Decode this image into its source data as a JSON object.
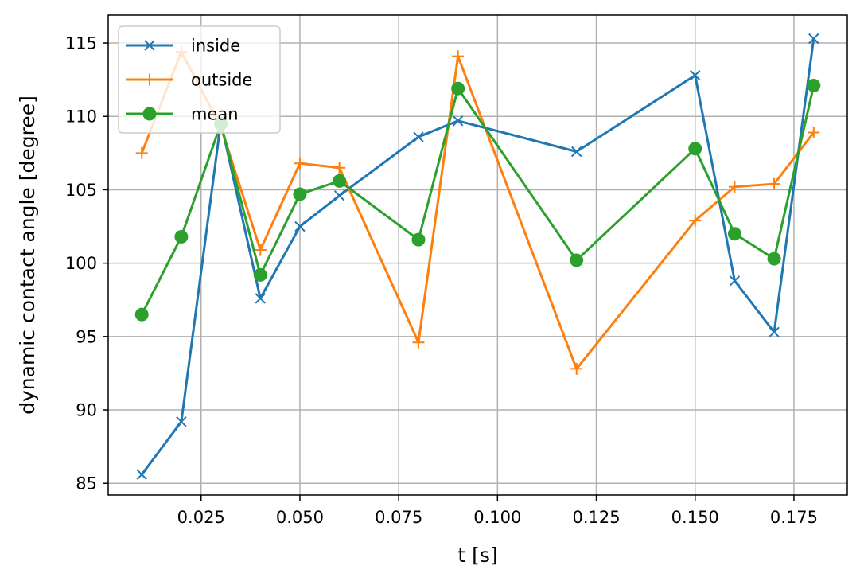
{
  "chart_data": {
    "type": "line",
    "title": "",
    "xlabel": "t [s]",
    "ylabel": "dynamic contact angle [degree]",
    "xlim": [
      0.0015,
      0.1885
    ],
    "ylim": [
      84.2,
      116.9
    ],
    "grid": true,
    "legend": "upper left",
    "x_ticks": [
      {
        "value": 0.025,
        "label": "0.025"
      },
      {
        "value": 0.05,
        "label": "0.050"
      },
      {
        "value": 0.075,
        "label": "0.075"
      },
      {
        "value": 0.1,
        "label": "0.100"
      },
      {
        "value": 0.125,
        "label": "0.125"
      },
      {
        "value": 0.15,
        "label": "0.150"
      },
      {
        "value": 0.175,
        "label": "0.175"
      }
    ],
    "y_ticks": [
      {
        "value": 85,
        "label": "85"
      },
      {
        "value": 90,
        "label": "90"
      },
      {
        "value": 95,
        "label": "95"
      },
      {
        "value": 100,
        "label": "100"
      },
      {
        "value": 105,
        "label": "105"
      },
      {
        "value": 110,
        "label": "110"
      },
      {
        "value": 115,
        "label": "115"
      }
    ],
    "x": [
      0.01,
      0.02,
      0.03,
      0.04,
      0.05,
      0.06,
      0.08,
      0.09,
      0.12,
      0.15,
      0.16,
      0.17,
      0.18
    ],
    "series": [
      {
        "name": "inside",
        "color": "#1f77b4",
        "marker": "x",
        "values": [
          85.6,
          89.2,
          109.6,
          97.6,
          102.5,
          104.6,
          108.6,
          109.7,
          107.6,
          112.8,
          98.8,
          95.3,
          115.3
        ]
      },
      {
        "name": "outside",
        "color": "#ff7f0e",
        "marker": "+",
        "values": [
          107.5,
          114.4,
          109.3,
          100.9,
          106.8,
          106.5,
          94.6,
          114.1,
          92.8,
          102.9,
          105.2,
          105.4,
          108.9
        ]
      },
      {
        "name": "mean",
        "color": "#2ca02c",
        "marker": "o",
        "values": [
          96.5,
          101.8,
          109.5,
          99.2,
          104.7,
          105.6,
          101.6,
          111.9,
          100.2,
          107.8,
          102.0,
          100.3,
          112.1
        ]
      }
    ]
  }
}
